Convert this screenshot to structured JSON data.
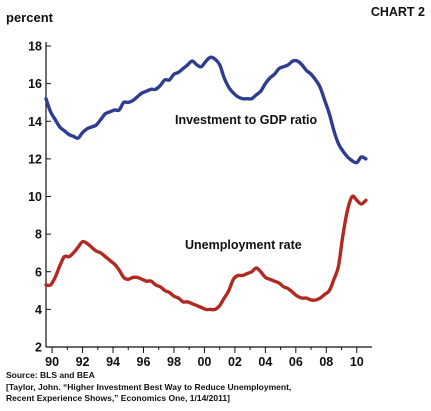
{
  "chart_data": {
    "type": "line",
    "title": "CHART 2",
    "ylabel": "percent",
    "xlabel": "",
    "ylim": [
      2,
      18
    ],
    "xlim": [
      1989.6,
      2011.0
    ],
    "yticks": [
      2,
      4,
      6,
      8,
      10,
      12,
      14,
      16,
      18
    ],
    "xtick_labels": [
      "90",
      "92",
      "94",
      "96",
      "98",
      "00",
      "02",
      "04",
      "06",
      "08",
      "10"
    ],
    "xtick_years": [
      1990,
      1992,
      1994,
      1996,
      1998,
      2000,
      2002,
      2004,
      2006,
      2008,
      2010
    ],
    "grid": false,
    "series": [
      {
        "name": "Investment to GDP ratio",
        "color": "#2e3d8f",
        "x": [
          1989.6,
          1989.9,
          1990.2,
          1990.5,
          1990.8,
          1991.1,
          1991.4,
          1991.7,
          1992.0,
          1992.3,
          1992.6,
          1992.9,
          1993.2,
          1993.5,
          1993.8,
          1994.1,
          1994.4,
          1994.7,
          1995.0,
          1995.3,
          1995.6,
          1995.9,
          1996.2,
          1996.5,
          1996.8,
          1997.1,
          1997.4,
          1997.7,
          1998.0,
          1998.3,
          1998.6,
          1998.9,
          1999.2,
          1999.5,
          1999.8,
          2000.1,
          2000.4,
          2000.7,
          2001.0,
          2001.3,
          2001.6,
          2001.9,
          2002.2,
          2002.5,
          2002.8,
          2003.1,
          2003.4,
          2003.7,
          2004.0,
          2004.3,
          2004.6,
          2004.9,
          2005.2,
          2005.5,
          2005.8,
          2006.1,
          2006.4,
          2006.7,
          2007.0,
          2007.3,
          2007.6,
          2007.9,
          2008.2,
          2008.5,
          2008.8,
          2009.1,
          2009.4,
          2009.7,
          2010.0,
          2010.3,
          2010.6
        ],
        "values": [
          15.2,
          14.5,
          14.1,
          13.7,
          13.5,
          13.3,
          13.2,
          13.1,
          13.4,
          13.6,
          13.7,
          13.8,
          14.1,
          14.4,
          14.5,
          14.6,
          14.6,
          15.0,
          15.0,
          15.1,
          15.3,
          15.5,
          15.6,
          15.7,
          15.7,
          15.9,
          16.2,
          16.2,
          16.5,
          16.6,
          16.8,
          17.0,
          17.2,
          17.0,
          16.9,
          17.2,
          17.4,
          17.3,
          17.0,
          16.3,
          15.8,
          15.5,
          15.3,
          15.2,
          15.2,
          15.2,
          15.4,
          15.6,
          16.0,
          16.3,
          16.5,
          16.8,
          16.9,
          17.0,
          17.2,
          17.2,
          17.0,
          16.7,
          16.5,
          16.2,
          15.8,
          15.1,
          14.4,
          13.5,
          12.8,
          12.4,
          12.1,
          11.9,
          11.8,
          12.1,
          12.0
        ]
      },
      {
        "name": "Unemployment rate",
        "color": "#b02a22",
        "x": [
          1989.6,
          1989.9,
          1990.2,
          1990.5,
          1990.8,
          1991.1,
          1991.4,
          1991.7,
          1992.0,
          1992.3,
          1992.6,
          1992.9,
          1993.2,
          1993.5,
          1993.8,
          1994.1,
          1994.4,
          1994.7,
          1995.0,
          1995.3,
          1995.6,
          1995.9,
          1996.2,
          1996.5,
          1996.8,
          1997.1,
          1997.4,
          1997.7,
          1998.0,
          1998.3,
          1998.6,
          1998.9,
          1999.2,
          1999.5,
          1999.8,
          2000.1,
          2000.4,
          2000.7,
          2001.0,
          2001.3,
          2001.6,
          2001.9,
          2002.2,
          2002.5,
          2002.8,
          2003.1,
          2003.4,
          2003.7,
          2004.0,
          2004.3,
          2004.6,
          2004.9,
          2005.2,
          2005.5,
          2005.8,
          2006.1,
          2006.4,
          2006.7,
          2007.0,
          2007.3,
          2007.6,
          2007.9,
          2008.2,
          2008.5,
          2008.8,
          2009.1,
          2009.4,
          2009.7,
          2010.0,
          2010.3,
          2010.6
        ],
        "values": [
          5.3,
          5.3,
          5.7,
          6.3,
          6.8,
          6.8,
          7.0,
          7.3,
          7.6,
          7.5,
          7.3,
          7.1,
          7.0,
          6.8,
          6.6,
          6.4,
          6.1,
          5.7,
          5.6,
          5.7,
          5.7,
          5.6,
          5.5,
          5.5,
          5.3,
          5.2,
          5.0,
          4.9,
          4.7,
          4.6,
          4.4,
          4.4,
          4.3,
          4.2,
          4.1,
          4.0,
          4.0,
          4.0,
          4.2,
          4.6,
          5.0,
          5.6,
          5.8,
          5.8,
          5.9,
          6.0,
          6.2,
          6.0,
          5.7,
          5.6,
          5.5,
          5.4,
          5.2,
          5.1,
          4.9,
          4.7,
          4.6,
          4.6,
          4.5,
          4.5,
          4.6,
          4.8,
          5.0,
          5.6,
          6.3,
          8.0,
          9.3,
          10.0,
          9.8,
          9.6,
          9.8
        ]
      }
    ],
    "annotations": [
      {
        "text": "Investment to GDP ratio",
        "series": 0
      },
      {
        "text": "Unemployment rate",
        "series": 1
      }
    ],
    "source_lines": [
      "Source: BLS and BEA",
      "[Taylor, John. “Higher Investment Best Way to Reduce Unemployment,",
      "Recent Experience Shows,” Economics One, 1/14/2011]"
    ]
  }
}
